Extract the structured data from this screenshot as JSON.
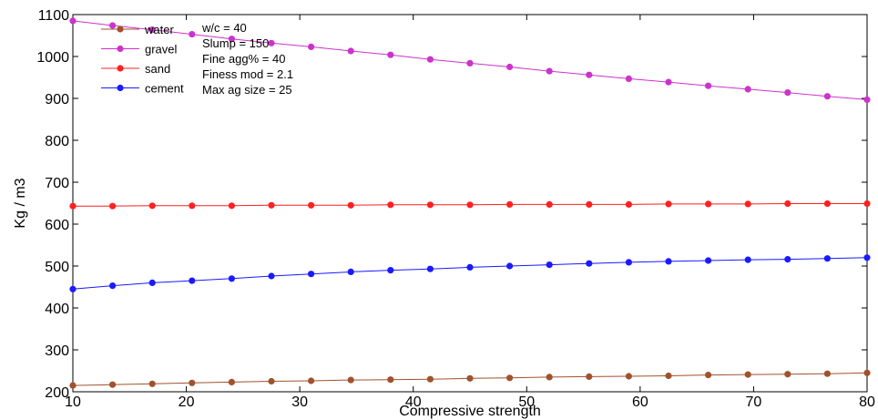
{
  "chart_data": {
    "type": "line",
    "xlabel": "Compressive strength",
    "ylabel": "Kg / m3",
    "xlim": [
      10,
      80
    ],
    "ylim": [
      200,
      1100
    ],
    "xticks": [
      10,
      20,
      30,
      40,
      50,
      60,
      70,
      80
    ],
    "yticks": [
      200,
      300,
      400,
      500,
      600,
      700,
      800,
      900,
      1000,
      1100
    ],
    "grid": false,
    "legend_position": "top-left",
    "x": [
      10,
      13.5,
      17,
      20.5,
      24,
      27.5,
      31,
      34.5,
      38,
      41.5,
      45,
      48.5,
      52,
      55.5,
      59,
      62.5,
      66,
      69.5,
      73,
      76.5,
      80
    ],
    "series": [
      {
        "name": "water",
        "color": "#a0522d",
        "values": [
          215,
          217,
          219,
          221,
          223,
          225,
          226,
          228,
          229,
          230,
          232,
          233,
          235,
          236,
          237,
          238,
          240,
          241,
          242,
          243,
          245
        ]
      },
      {
        "name": "gravel",
        "color": "#cc33cc",
        "values": [
          1085,
          1074,
          1064,
          1053,
          1042,
          1032,
          1023,
          1013,
          1004,
          993,
          984,
          975,
          965,
          956,
          947,
          939,
          930,
          922,
          914,
          905,
          897
        ]
      },
      {
        "name": "sand",
        "color": "#ff2020",
        "values": [
          643,
          643,
          644,
          644,
          644,
          645,
          645,
          645,
          646,
          646,
          646,
          647,
          647,
          647,
          647,
          648,
          648,
          648,
          649,
          649,
          649
        ]
      },
      {
        "name": "cement",
        "color": "#1a1aff",
        "values": [
          445,
          453,
          460,
          465,
          470,
          476,
          481,
          486,
          490,
          493,
          497,
          500,
          503,
          506,
          509,
          511,
          513,
          515,
          516,
          518,
          520
        ]
      }
    ],
    "annotations": [
      "w/c = 40",
      "Slump = 150",
      "Fine agg% = 40",
      "Finess mod = 2.1",
      "Max ag size = 25"
    ]
  }
}
